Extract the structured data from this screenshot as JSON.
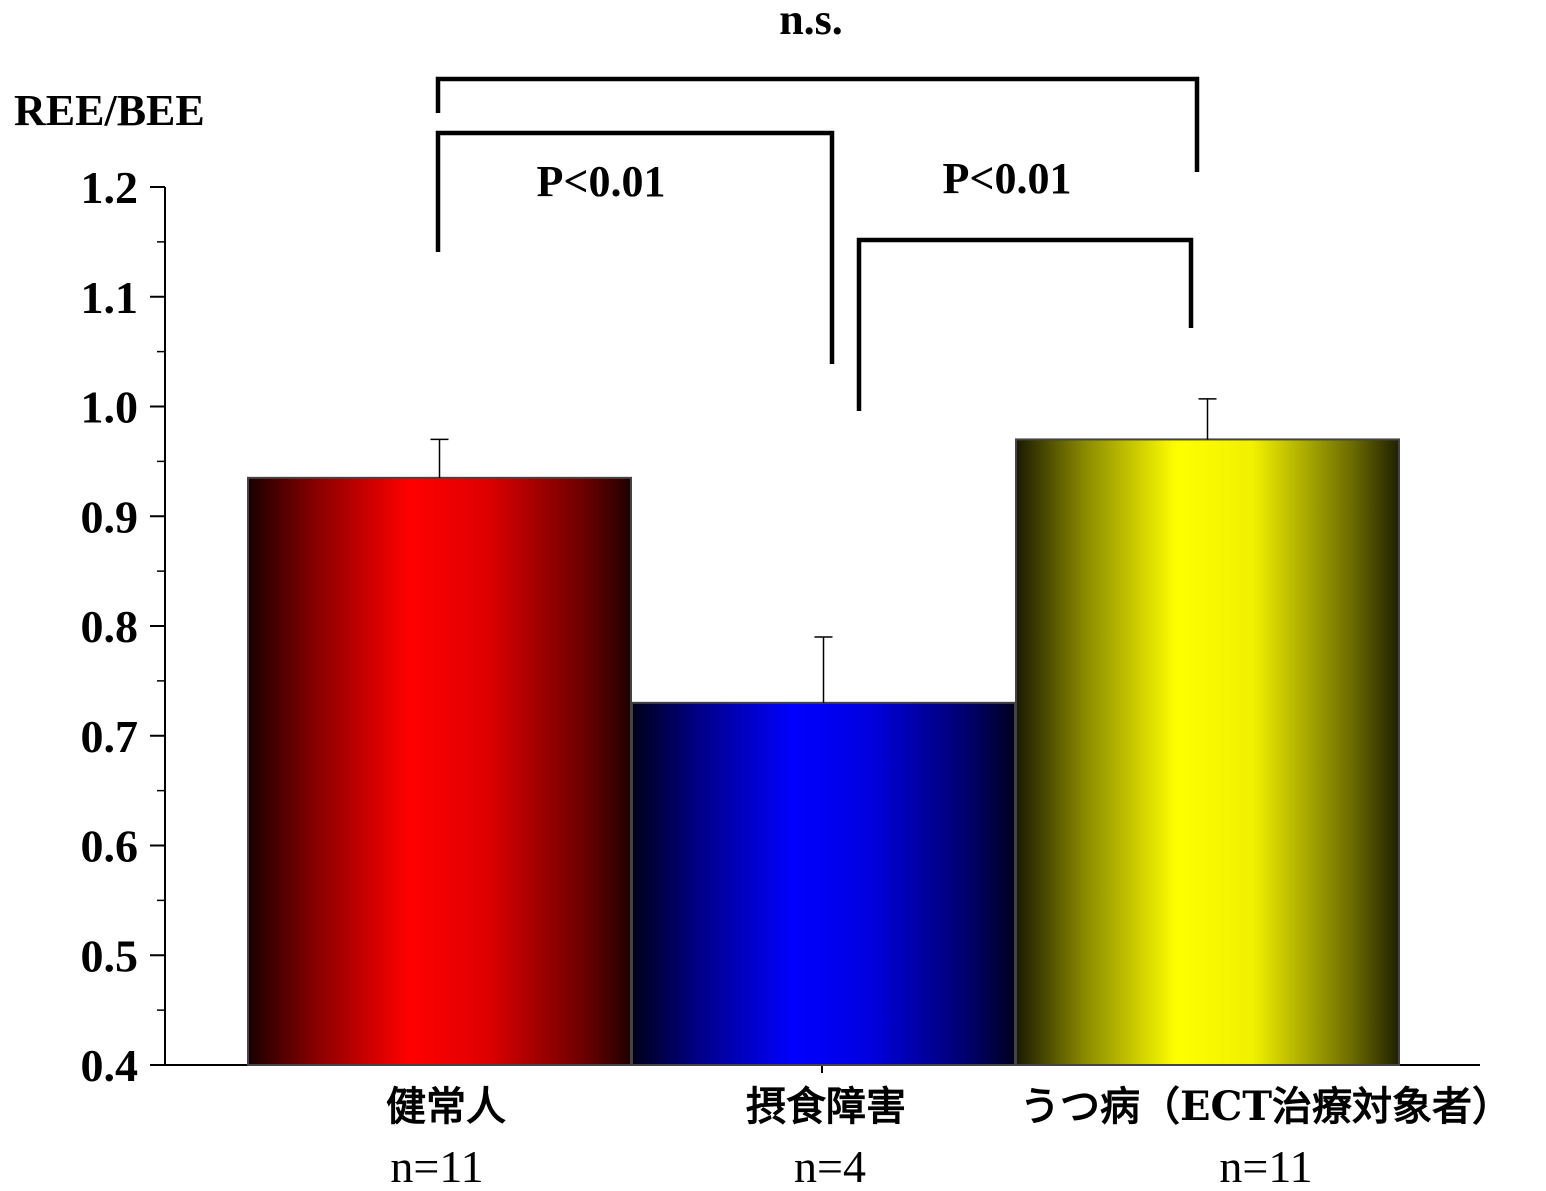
{
  "chart_data": {
    "type": "bar",
    "title": "",
    "xlabel": "",
    "ylabel": "REE/BEE",
    "ylim": [
      0.4,
      1.2
    ],
    "yticks": [
      "0.4",
      "0.5",
      "0.6",
      "0.7",
      "0.8",
      "0.9",
      "1.0",
      "1.1",
      "1.2"
    ],
    "categories": [
      "健常人",
      "摂食障害",
      "うつ病（ECT治療対象者）"
    ],
    "sample_sizes": [
      "n=11",
      "n=4",
      "n=11"
    ],
    "values": [
      0.935,
      0.73,
      0.97
    ],
    "error_upper": [
      0.97,
      0.79,
      1.007
    ],
    "colors": [
      "#ff0000",
      "#0000ff",
      "#ffff00"
    ],
    "grid": false,
    "legend": "none",
    "significance": [
      {
        "between": [
          0,
          1
        ],
        "label": "P<0.01"
      },
      {
        "between": [
          1,
          2
        ],
        "label": "P<0.01"
      },
      {
        "between": [
          0,
          2
        ],
        "label": "n.s."
      }
    ]
  }
}
